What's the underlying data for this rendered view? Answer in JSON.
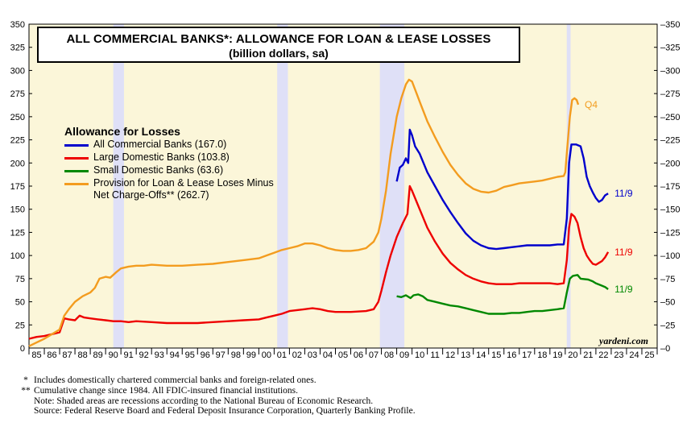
{
  "chart_data": {
    "type": "line",
    "title": "ALL COMMERCIAL BANKS*: ALLOWANCE FOR LOAN & LEASE LOSSES",
    "subtitle": "(billion dollars, sa)",
    "ylim": [
      0,
      350
    ],
    "yticks": [
      0,
      25,
      50,
      75,
      100,
      125,
      150,
      175,
      200,
      225,
      250,
      275,
      300,
      325,
      350
    ],
    "xlim": [
      1985,
      2026
    ],
    "xtick_labels": [
      "85",
      "86",
      "87",
      "88",
      "89",
      "90",
      "91",
      "92",
      "93",
      "94",
      "95",
      "96",
      "97",
      "98",
      "99",
      "00",
      "01",
      "02",
      "03",
      "04",
      "05",
      "06",
      "07",
      "08",
      "09",
      "10",
      "11",
      "12",
      "13",
      "14",
      "15",
      "16",
      "17",
      "18",
      "19",
      "20",
      "21",
      "22",
      "23",
      "24",
      "25"
    ],
    "recessions": [
      [
        1990.5,
        1991.2
      ],
      [
        2001.2,
        2001.9
      ],
      [
        2007.9,
        2009.5
      ],
      [
        2020.1,
        2020.35
      ]
    ],
    "legend_title": "Allowance for Losses",
    "series": [
      {
        "name": "All Commercial Banks (167.0)",
        "color": "#0000cc",
        "end_label": "11/9",
        "points": [
          [
            2009.0,
            180
          ],
          [
            2009.2,
            195
          ],
          [
            2009.4,
            198
          ],
          [
            2009.6,
            205
          ],
          [
            2009.75,
            200
          ],
          [
            2009.85,
            236
          ],
          [
            2010.0,
            230
          ],
          [
            2010.2,
            218
          ],
          [
            2010.5,
            210
          ],
          [
            2011.0,
            190
          ],
          [
            2011.5,
            175
          ],
          [
            2012.0,
            160
          ],
          [
            2012.5,
            147
          ],
          [
            2013.0,
            135
          ],
          [
            2013.5,
            124
          ],
          [
            2014.0,
            116
          ],
          [
            2014.5,
            111
          ],
          [
            2015.0,
            108
          ],
          [
            2015.5,
            107
          ],
          [
            2016.0,
            108
          ],
          [
            2016.5,
            109
          ],
          [
            2017.0,
            110
          ],
          [
            2017.5,
            111
          ],
          [
            2018.0,
            111
          ],
          [
            2018.5,
            111
          ],
          [
            2019.0,
            111
          ],
          [
            2019.5,
            112
          ],
          [
            2019.9,
            112
          ],
          [
            2020.1,
            140
          ],
          [
            2020.25,
            200
          ],
          [
            2020.4,
            220
          ],
          [
            2020.7,
            220
          ],
          [
            2021.0,
            218
          ],
          [
            2021.2,
            205
          ],
          [
            2021.4,
            185
          ],
          [
            2021.6,
            175
          ],
          [
            2021.8,
            168
          ],
          [
            2022.0,
            162
          ],
          [
            2022.2,
            158
          ],
          [
            2022.4,
            160
          ],
          [
            2022.6,
            165
          ],
          [
            2022.8,
            167
          ]
        ]
      },
      {
        "name": "Large Domestic Banks (103.8)",
        "color": "#ee0000",
        "end_label": "11/9",
        "points": [
          [
            1985.0,
            10
          ],
          [
            1985.5,
            12
          ],
          [
            1986.0,
            13
          ],
          [
            1986.5,
            15
          ],
          [
            1987.0,
            17
          ],
          [
            1987.3,
            32
          ],
          [
            1987.6,
            31
          ],
          [
            1988.0,
            30
          ],
          [
            1988.3,
            35
          ],
          [
            1988.6,
            33
          ],
          [
            1989.0,
            32
          ],
          [
            1989.5,
            31
          ],
          [
            1990.0,
            30
          ],
          [
            1990.5,
            29
          ],
          [
            1991.0,
            29
          ],
          [
            1991.5,
            28
          ],
          [
            1992.0,
            29
          ],
          [
            1993.0,
            28
          ],
          [
            1994.0,
            27
          ],
          [
            1995.0,
            27
          ],
          [
            1996.0,
            27
          ],
          [
            1997.0,
            28
          ],
          [
            1998.0,
            29
          ],
          [
            1999.0,
            30
          ],
          [
            2000.0,
            31
          ],
          [
            2000.5,
            33
          ],
          [
            2001.0,
            35
          ],
          [
            2001.5,
            37
          ],
          [
            2002.0,
            40
          ],
          [
            2002.5,
            41
          ],
          [
            2003.0,
            42
          ],
          [
            2003.5,
            43
          ],
          [
            2004.0,
            42
          ],
          [
            2004.5,
            40
          ],
          [
            2005.0,
            39
          ],
          [
            2006.0,
            39
          ],
          [
            2007.0,
            40
          ],
          [
            2007.5,
            42
          ],
          [
            2007.8,
            50
          ],
          [
            2008.0,
            62
          ],
          [
            2008.3,
            82
          ],
          [
            2008.6,
            100
          ],
          [
            2009.0,
            120
          ],
          [
            2009.4,
            135
          ],
          [
            2009.7,
            145
          ],
          [
            2009.85,
            175
          ],
          [
            2010.0,
            170
          ],
          [
            2010.3,
            158
          ],
          [
            2010.5,
            150
          ],
          [
            2011.0,
            130
          ],
          [
            2011.5,
            115
          ],
          [
            2012.0,
            102
          ],
          [
            2012.5,
            92
          ],
          [
            2013.0,
            85
          ],
          [
            2013.5,
            79
          ],
          [
            2014.0,
            75
          ],
          [
            2014.5,
            72
          ],
          [
            2015.0,
            70
          ],
          [
            2015.5,
            69
          ],
          [
            2016.0,
            69
          ],
          [
            2016.5,
            69
          ],
          [
            2017.0,
            70
          ],
          [
            2017.5,
            70
          ],
          [
            2018.0,
            70
          ],
          [
            2018.5,
            70
          ],
          [
            2019.0,
            70
          ],
          [
            2019.5,
            69
          ],
          [
            2019.9,
            70
          ],
          [
            2020.1,
            95
          ],
          [
            2020.25,
            130
          ],
          [
            2020.4,
            145
          ],
          [
            2020.6,
            142
          ],
          [
            2020.8,
            135
          ],
          [
            2021.0,
            120
          ],
          [
            2021.2,
            108
          ],
          [
            2021.4,
            100
          ],
          [
            2021.6,
            95
          ],
          [
            2021.8,
            91
          ],
          [
            2022.0,
            90
          ],
          [
            2022.2,
            92
          ],
          [
            2022.4,
            94
          ],
          [
            2022.6,
            98
          ],
          [
            2022.8,
            103.8
          ]
        ]
      },
      {
        "name": "Small Domestic Banks (63.6)",
        "color": "#008800",
        "end_label": "11/9",
        "points": [
          [
            2009.0,
            56
          ],
          [
            2009.3,
            55
          ],
          [
            2009.6,
            57
          ],
          [
            2009.9,
            54
          ],
          [
            2010.1,
            57
          ],
          [
            2010.4,
            58
          ],
          [
            2010.7,
            56
          ],
          [
            2011.0,
            52
          ],
          [
            2011.5,
            50
          ],
          [
            2012.0,
            48
          ],
          [
            2012.5,
            46
          ],
          [
            2013.0,
            45
          ],
          [
            2013.5,
            43
          ],
          [
            2014.0,
            41
          ],
          [
            2014.5,
            39
          ],
          [
            2015.0,
            37
          ],
          [
            2015.5,
            37
          ],
          [
            2016.0,
            37
          ],
          [
            2016.5,
            38
          ],
          [
            2017.0,
            38
          ],
          [
            2017.5,
            39
          ],
          [
            2018.0,
            40
          ],
          [
            2018.5,
            40
          ],
          [
            2019.0,
            41
          ],
          [
            2019.5,
            42
          ],
          [
            2019.9,
            43
          ],
          [
            2020.1,
            60
          ],
          [
            2020.3,
            75
          ],
          [
            2020.5,
            78
          ],
          [
            2020.8,
            79
          ],
          [
            2021.0,
            75
          ],
          [
            2021.5,
            74
          ],
          [
            2021.8,
            72
          ],
          [
            2022.0,
            70
          ],
          [
            2022.3,
            68
          ],
          [
            2022.6,
            66
          ],
          [
            2022.8,
            63.6
          ]
        ]
      },
      {
        "name": "Provision for Loan & Lease Loses Minus",
        "name_line2": "Net Charge-Offs** (262.7)",
        "color": "#f39c1f",
        "end_label": "Q4",
        "points": [
          [
            1985.0,
            2
          ],
          [
            1985.5,
            6
          ],
          [
            1986.0,
            10
          ],
          [
            1986.5,
            15
          ],
          [
            1987.0,
            20
          ],
          [
            1987.3,
            35
          ],
          [
            1987.6,
            42
          ],
          [
            1988.0,
            50
          ],
          [
            1988.5,
            56
          ],
          [
            1989.0,
            60
          ],
          [
            1989.3,
            65
          ],
          [
            1989.6,
            75
          ],
          [
            1990.0,
            77
          ],
          [
            1990.3,
            76
          ],
          [
            1990.7,
            82
          ],
          [
            1991.0,
            86
          ],
          [
            1991.5,
            88
          ],
          [
            1992.0,
            89
          ],
          [
            1992.5,
            89
          ],
          [
            1993.0,
            90
          ],
          [
            1994.0,
            89
          ],
          [
            1995.0,
            89
          ],
          [
            1996.0,
            90
          ],
          [
            1997.0,
            91
          ],
          [
            1998.0,
            93
          ],
          [
            1999.0,
            95
          ],
          [
            2000.0,
            97
          ],
          [
            2000.5,
            100
          ],
          [
            2001.0,
            103
          ],
          [
            2001.5,
            106
          ],
          [
            2002.0,
            108
          ],
          [
            2002.5,
            110
          ],
          [
            2003.0,
            113
          ],
          [
            2003.5,
            113
          ],
          [
            2004.0,
            111
          ],
          [
            2004.5,
            108
          ],
          [
            2005.0,
            106
          ],
          [
            2005.5,
            105
          ],
          [
            2006.0,
            105
          ],
          [
            2006.5,
            106
          ],
          [
            2007.0,
            108
          ],
          [
            2007.5,
            115
          ],
          [
            2007.8,
            125
          ],
          [
            2008.0,
            140
          ],
          [
            2008.3,
            170
          ],
          [
            2008.6,
            210
          ],
          [
            2009.0,
            250
          ],
          [
            2009.3,
            270
          ],
          [
            2009.6,
            285
          ],
          [
            2009.8,
            290
          ],
          [
            2010.0,
            288
          ],
          [
            2010.3,
            275
          ],
          [
            2010.6,
            262
          ],
          [
            2011.0,
            245
          ],
          [
            2011.5,
            228
          ],
          [
            2012.0,
            212
          ],
          [
            2012.5,
            198
          ],
          [
            2013.0,
            187
          ],
          [
            2013.5,
            178
          ],
          [
            2014.0,
            172
          ],
          [
            2014.5,
            169
          ],
          [
            2015.0,
            168
          ],
          [
            2015.5,
            170
          ],
          [
            2016.0,
            174
          ],
          [
            2016.5,
            176
          ],
          [
            2017.0,
            178
          ],
          [
            2017.5,
            179
          ],
          [
            2018.0,
            180
          ],
          [
            2018.5,
            181
          ],
          [
            2019.0,
            183
          ],
          [
            2019.5,
            185
          ],
          [
            2019.9,
            186
          ],
          [
            2020.0,
            190
          ],
          [
            2020.15,
            220
          ],
          [
            2020.3,
            250
          ],
          [
            2020.45,
            268
          ],
          [
            2020.6,
            270
          ],
          [
            2020.75,
            268
          ],
          [
            2020.85,
            263
          ]
        ]
      }
    ],
    "watermark": "yardeni.com"
  },
  "footnotes": [
    {
      "mark": "*",
      "text": "Includes domestically chartered commercial banks and foreign-related ones."
    },
    {
      "mark": "**",
      "text": "Cumulative change since 1984. All FDIC-insured financial institutions."
    },
    {
      "mark": "",
      "text": "Note: Shaded areas are recessions according to the National Bureau of Economic Research."
    },
    {
      "mark": "",
      "text": "Source: Federal Reserve Board and Federal Deposit Insurance Corporation, Quarterly Banking Profile."
    }
  ]
}
